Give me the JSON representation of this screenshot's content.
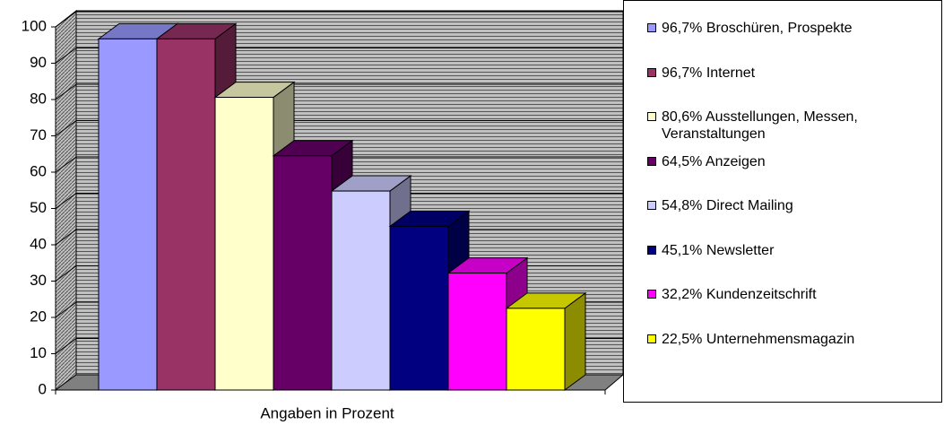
{
  "chart_data": {
    "type": "bar3d",
    "x_label": "Angaben in Prozent",
    "ylim": [
      0,
      100
    ],
    "yticks": [
      0,
      10,
      20,
      30,
      40,
      50,
      60,
      70,
      80,
      90,
      100
    ],
    "grid": true,
    "series": [
      {
        "name": "96,7% Broschüren, Prospekte",
        "color": "#9999ff",
        "values": [
          96.7
        ]
      },
      {
        "name": "96,7% Internet",
        "color": "#993366",
        "values": [
          96.7
        ]
      },
      {
        "name": "80,6% Ausstellungen, Messen, Veranstaltungen",
        "color": "#ffffcc",
        "values": [
          80.6
        ]
      },
      {
        "name": "64,5% Anzeigen",
        "color": "#660066",
        "values": [
          64.5
        ]
      },
      {
        "name": "54,8% Direct Mailing",
        "color": "#ccccff",
        "values": [
          54.8
        ]
      },
      {
        "name": "45,1% Newsletter",
        "color": "#000080",
        "values": [
          45.1
        ]
      },
      {
        "name": "32,2% Kundenzeitschrift",
        "color": "#ff00ff",
        "values": [
          32.2
        ]
      },
      {
        "name": "22,5% Unternehmensmagazin",
        "color": "#ffff00",
        "values": [
          22.5
        ]
      }
    ]
  }
}
